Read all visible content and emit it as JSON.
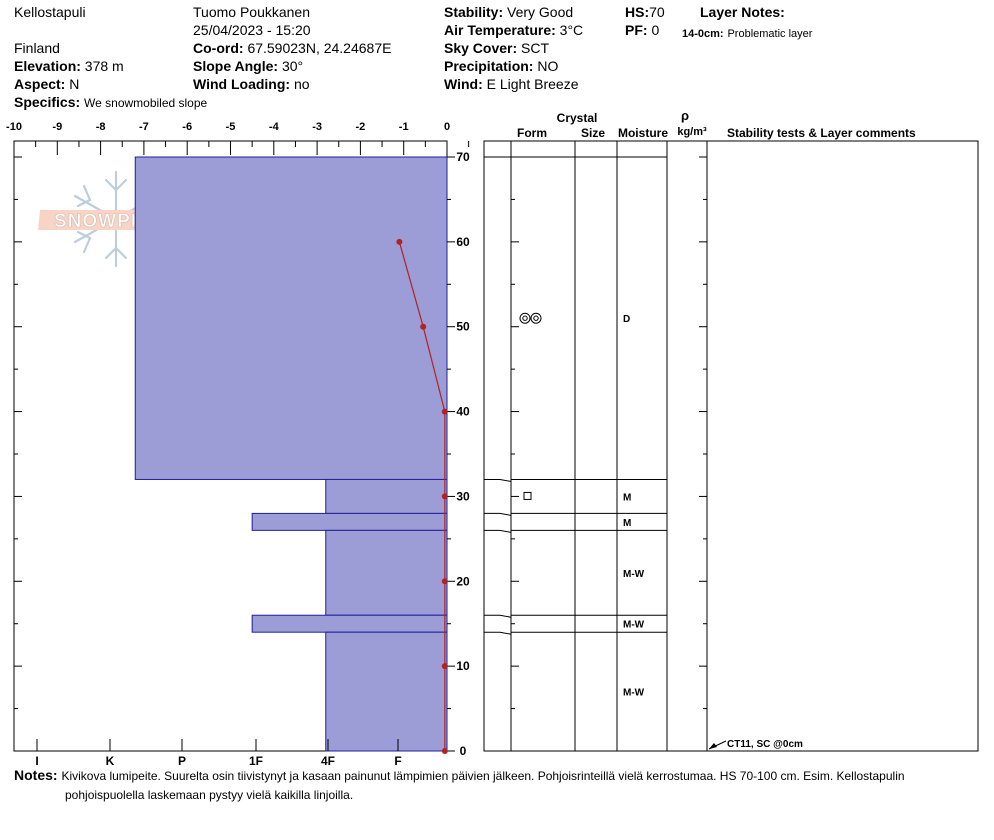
{
  "header": {
    "location": "Kellostapuli",
    "observer": "Tuomo Poukkanen",
    "datetime": "25/04/2023 - 15:20",
    "country": "Finland",
    "coord_label": "Co-ord:",
    "coord_value": "67.59023N, 24.24687E",
    "elevation_label": "Elevation:",
    "elevation_value": "378 m",
    "slope_angle_label": "Slope Angle:",
    "slope_angle_value": "30°",
    "aspect_label": "Aspect:",
    "aspect_value": "N",
    "wind_loading_label": "Wind Loading:",
    "wind_loading_value": "no",
    "specifics_label": "Specifics:",
    "specifics_value": "We snowmobiled slope",
    "stability_label": "Stability:",
    "stability_value": "Very Good",
    "air_temp_label": "Air Temperature:",
    "air_temp_value": "3°C",
    "sky_cover_label": "Sky Cover:",
    "sky_cover_value": "SCT",
    "precip_label": "Precipitation:",
    "precip_value": "NO",
    "wind_label": "Wind:",
    "wind_value": "E Light Breeze",
    "hs_label": "HS:",
    "hs_value": "70",
    "pf_label": "PF:",
    "pf_value": "0",
    "layer_notes_label": "Layer Notes:",
    "layer_note_depth": "14-0cm:",
    "layer_note_text": "Problematic layer"
  },
  "logo": {
    "text": "SNOWPILOT"
  },
  "columns": {
    "crystal": "Crystal",
    "form": "Form",
    "size": "Size",
    "moisture": "Moisture",
    "rho": "ρ",
    "density_unit": "kg/m³",
    "stability": "Stability tests & Layer comments"
  },
  "notes": {
    "label": "Notes:",
    "line1": "Kivikova lumipeite. Suurelta osin tiivistynyt ja kasaan painunut lämpimien päivien jälkeen. Pohjoisrinteillä vielä kerrostumaa. HS 70-100 cm. Esim. Kellostapulin",
    "line2": "pohjoispuolella laskemaan pystyy vielä kaikilla linjoilla."
  },
  "chart_data": {
    "type": "bar",
    "temperature_axis": {
      "ticks": [
        "-10",
        "-9",
        "-8",
        "-7",
        "-6",
        "-5",
        "-4",
        "-3",
        "-2",
        "-1",
        "0"
      ],
      "range": [
        -10,
        0
      ]
    },
    "hardness_axis": {
      "ticks": [
        "I",
        "K",
        "P",
        "1F",
        "4F",
        "F"
      ]
    },
    "height_axis": {
      "ticks": [
        "0",
        "10",
        "20",
        "30",
        "40",
        "50",
        "60",
        "70"
      ],
      "range": [
        0,
        70
      ]
    },
    "hardness_layers": [
      {
        "top": 70,
        "bottom": 32,
        "temp_extent": -7.2
      },
      {
        "top": 32,
        "bottom": 28,
        "temp_extent": -2.8
      },
      {
        "top": 28,
        "bottom": 26,
        "temp_extent": -4.5
      },
      {
        "top": 26,
        "bottom": 16,
        "temp_extent": -2.8
      },
      {
        "top": 16,
        "bottom": 14,
        "temp_extent": -4.5
      },
      {
        "top": 14,
        "bottom": 0,
        "temp_extent": -2.8
      }
    ],
    "temperature_profile": [
      {
        "height": 60,
        "temp": -1.1
      },
      {
        "height": 50,
        "temp": -0.55
      },
      {
        "height": 40,
        "temp": -0.05
      },
      {
        "height": 30,
        "temp": -0.05
      },
      {
        "height": 20,
        "temp": -0.05
      },
      {
        "height": 10,
        "temp": -0.05
      },
      {
        "height": 0,
        "temp": -0.05
      }
    ],
    "layer_boundaries": [
      70,
      32,
      28,
      26,
      16,
      14
    ],
    "layers": [
      {
        "mid": 51,
        "form_icon": "rounding-faceted-icon",
        "moisture": "D"
      },
      {
        "mid": 30,
        "form_icon": "faceted-square-icon",
        "moisture": "M"
      },
      {
        "mid": 27,
        "form_icon": "",
        "moisture": "M"
      },
      {
        "mid": 21,
        "form_icon": "",
        "moisture": "M-W"
      },
      {
        "mid": 15,
        "form_icon": "",
        "moisture": "M-W"
      },
      {
        "mid": 7,
        "form_icon": "",
        "moisture": "M-W"
      }
    ],
    "stability_test": {
      "height": 0,
      "text": "CT11, SC @0cm"
    },
    "colors": {
      "fill": "#9c9cd6",
      "edge": "#1f1f9a",
      "temp": "#b22222"
    }
  }
}
